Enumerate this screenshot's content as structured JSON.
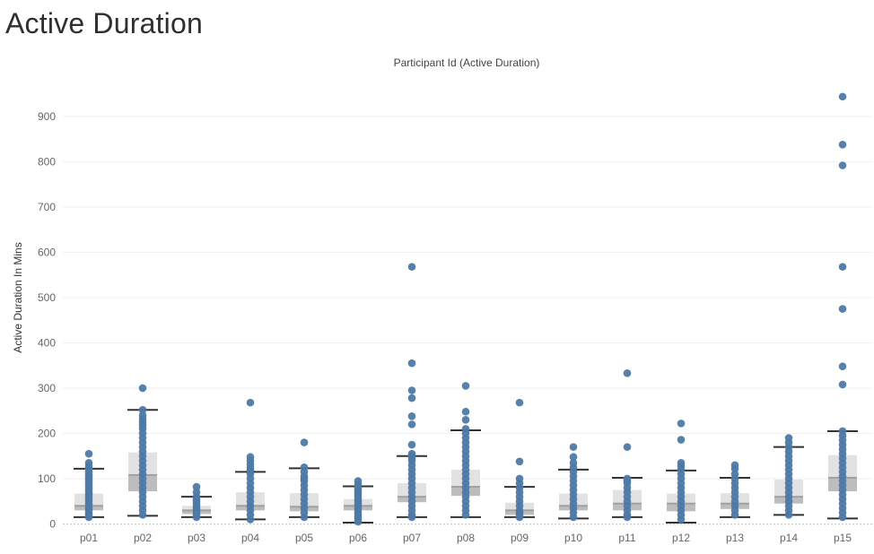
{
  "page": {
    "title": "Active Duration"
  },
  "chart_data": {
    "type": "boxplot",
    "title": "Participant Id (Active Duration)",
    "ylabel": "Active Duration In Mins",
    "xlabel": "",
    "ylim": [
      -5,
      995
    ],
    "yticks": [
      0,
      100,
      200,
      300,
      400,
      500,
      600,
      700,
      800,
      900
    ],
    "grid": true,
    "legend": "none",
    "colors": {
      "point": "#4e79a7",
      "box_upper": "#e2e2e2",
      "box_lower": "#bdbdbd",
      "median_band": "#a0a0a0",
      "whisker": "#333333",
      "grid": "#efefef",
      "zero_line": "#c8c8c8",
      "axis_text": "#666666"
    },
    "categories": [
      "p01",
      "p02",
      "p03",
      "p04",
      "p05",
      "p06",
      "p07",
      "p08",
      "p09",
      "p10",
      "p11",
      "p12",
      "p13",
      "p14",
      "p15"
    ],
    "boxes": [
      {
        "min": 15,
        "q1": 30,
        "median": 40,
        "q3": 67,
        "max": 122
      },
      {
        "min": 18,
        "q1": 72,
        "median": 108,
        "q3": 158,
        "max": 252
      },
      {
        "min": 15,
        "q1": 22,
        "median": 30,
        "q3": 40,
        "max": 60
      },
      {
        "min": 10,
        "q1": 30,
        "median": 40,
        "q3": 70,
        "max": 115
      },
      {
        "min": 15,
        "q1": 28,
        "median": 38,
        "q3": 68,
        "max": 123
      },
      {
        "min": 3,
        "q1": 30,
        "median": 40,
        "q3": 55,
        "max": 83
      },
      {
        "min": 15,
        "q1": 48,
        "median": 60,
        "q3": 90,
        "max": 150
      },
      {
        "min": 15,
        "q1": 62,
        "median": 82,
        "q3": 120,
        "max": 207
      },
      {
        "min": 15,
        "q1": 20,
        "median": 30,
        "q3": 47,
        "max": 82
      },
      {
        "min": 12,
        "q1": 30,
        "median": 40,
        "q3": 67,
        "max": 120
      },
      {
        "min": 15,
        "q1": 30,
        "median": 45,
        "q3": 75,
        "max": 102
      },
      {
        "min": 3,
        "q1": 28,
        "median": 45,
        "q3": 67,
        "max": 118
      },
      {
        "min": 15,
        "q1": 33,
        "median": 45,
        "q3": 68,
        "max": 102
      },
      {
        "min": 20,
        "q1": 45,
        "median": 60,
        "q3": 98,
        "max": 170
      },
      {
        "min": 12,
        "q1": 72,
        "median": 102,
        "q3": 152,
        "max": 205
      }
    ],
    "points": [
      [
        155,
        135,
        128,
        122,
        115,
        110,
        105,
        100,
        95,
        90,
        85,
        80,
        75,
        70,
        65,
        60,
        55,
        50,
        45,
        40,
        35,
        30,
        25,
        20,
        15
      ],
      [
        300,
        252,
        240,
        232,
        225,
        218,
        210,
        200,
        190,
        180,
        170,
        160,
        150,
        140,
        130,
        120,
        110,
        100,
        90,
        80,
        70,
        60,
        50,
        40,
        30,
        20
      ],
      [
        82,
        70,
        60,
        55,
        50,
        45,
        40,
        35,
        30,
        25,
        20,
        15
      ],
      [
        268,
        148,
        140,
        132,
        125,
        118,
        110,
        100,
        90,
        80,
        70,
        60,
        50,
        40,
        30,
        20,
        10
      ],
      [
        180,
        125,
        115,
        105,
        100,
        95,
        85,
        75,
        65,
        55,
        45,
        35,
        25,
        15
      ],
      [
        95,
        88,
        80,
        75,
        70,
        65,
        60,
        55,
        50,
        45,
        40,
        35,
        30,
        25,
        20,
        15,
        10,
        5
      ],
      [
        568,
        355,
        295,
        278,
        238,
        220,
        175,
        155,
        150,
        145,
        140,
        130,
        120,
        110,
        100,
        90,
        80,
        70,
        60,
        50,
        40,
        30,
        20,
        15
      ],
      [
        305,
        248,
        230,
        210,
        200,
        190,
        180,
        170,
        160,
        150,
        140,
        130,
        120,
        110,
        100,
        90,
        80,
        70,
        60,
        50,
        40,
        30,
        20
      ],
      [
        268,
        138,
        100,
        90,
        80,
        70,
        60,
        50,
        40,
        30,
        25,
        20,
        15
      ],
      [
        170,
        148,
        135,
        125,
        115,
        105,
        95,
        85,
        75,
        65,
        55,
        45,
        35,
        25,
        15
      ],
      [
        333,
        170,
        100,
        95,
        90,
        80,
        70,
        60,
        50,
        40,
        30,
        20,
        15
      ],
      [
        222,
        186,
        135,
        128,
        120,
        110,
        100,
        90,
        80,
        70,
        60,
        50,
        40,
        30,
        20,
        10
      ],
      [
        130,
        122,
        110,
        100,
        90,
        80,
        70,
        60,
        50,
        40,
        30,
        20
      ],
      [
        190,
        180,
        170,
        160,
        150,
        140,
        130,
        120,
        110,
        100,
        90,
        80,
        70,
        60,
        50,
        40,
        30,
        20
      ],
      [
        944,
        838,
        792,
        568,
        475,
        348,
        308,
        205,
        195,
        185,
        175,
        165,
        155,
        145,
        135,
        125,
        115,
        105,
        95,
        85,
        75,
        65,
        55,
        45,
        35,
        25,
        15
      ]
    ]
  }
}
